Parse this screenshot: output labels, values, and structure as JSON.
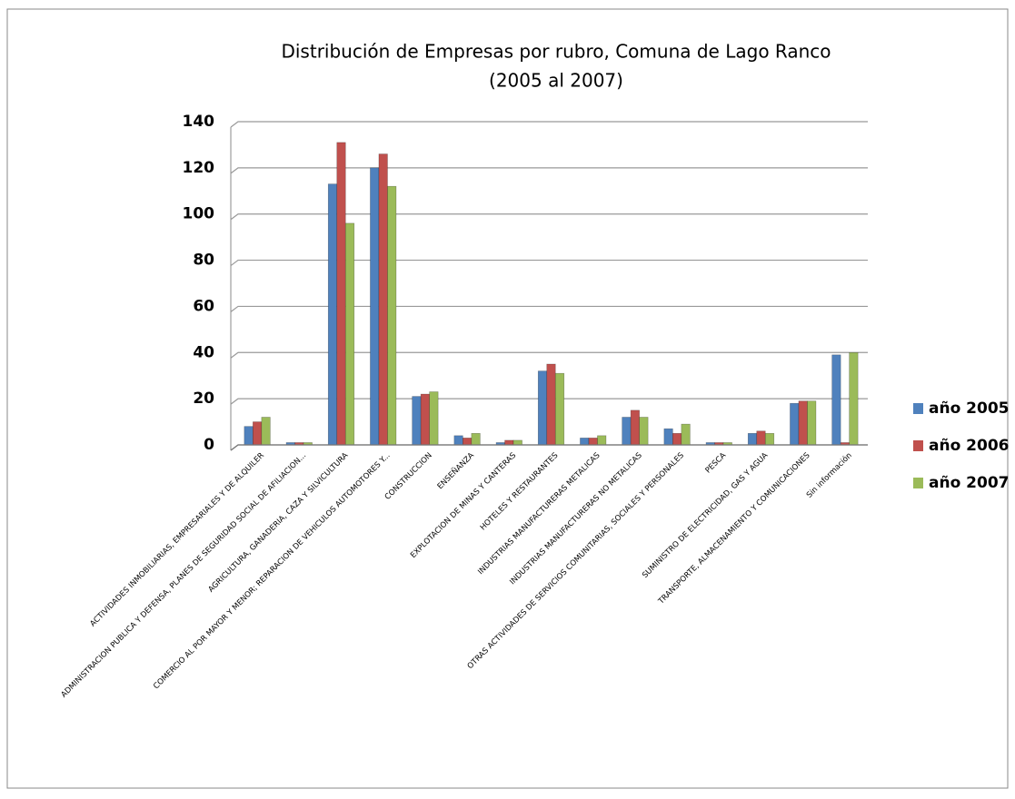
{
  "chart_data": {
    "type": "bar",
    "title": [
      "Distribución de Empresas por rubro, Comuna de Lago Ranco",
      "(2005 al 2007)"
    ],
    "categories": [
      "ACTIVIDADES INMOBILIARIAS, EMPRESARIALES Y DE ALQUILER",
      "ADMINISTRACION PUBLICA Y DEFENSA, PLANES DE SEGURIDAD SOCIAL DE AFILIACION...",
      "AGRICULTURA, GANADERIA, CAZA Y SILVICULTURA",
      "COMERCIO AL POR MAYOR Y MENOR; REPARACION DE VEHICULOS AUTOMOTORES Y...",
      "CONSTRUCCION",
      "ENSEÑANZA",
      "EXPLOTACION DE MINAS Y CANTERAS",
      "HOTELES Y RESTAURANTES",
      "INDUSTRIAS MANUFACTURERAS METALICAS",
      "INDUSTRIAS MANUFACTURERAS NO METALICAS",
      "OTRAS ACTIVIDADES DE SERVICIOS COMUNITARIAS, SOCIALES Y PERSONALES",
      "PESCA",
      "SUMINISTRO DE ELECTRICIDAD, GAS Y AGUA",
      "TRANSPORTE, ALMACENAMIENTO Y COMUNICACIONES",
      "Sin información"
    ],
    "series": [
      {
        "name": "año 2005",
        "color": "#4f81bd",
        "values": [
          8,
          1,
          113,
          120,
          21,
          4,
          1,
          32,
          3,
          12,
          7,
          1,
          5,
          18,
          39
        ]
      },
      {
        "name": "año 2006",
        "color": "#c0504d",
        "values": [
          10,
          1,
          131,
          126,
          22,
          3,
          2,
          35,
          3,
          15,
          5,
          1,
          6,
          19,
          1
        ]
      },
      {
        "name": "año 2007",
        "color": "#9bbb59",
        "values": [
          12,
          1,
          96,
          112,
          23,
          5,
          2,
          31,
          4,
          12,
          9,
          1,
          5,
          19,
          40
        ]
      }
    ],
    "ylim": [
      0,
      140
    ],
    "yticks": [
      0,
      20,
      40,
      60,
      80,
      100,
      120,
      140
    ],
    "grid": true,
    "legend": "right"
  }
}
